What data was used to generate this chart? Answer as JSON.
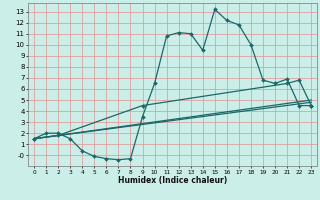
{
  "xlabel": "Humidex (Indice chaleur)",
  "bg_color": "#cceee8",
  "grid_color": "#dda0a0",
  "line_color": "#1a6868",
  "xlim": [
    -0.5,
    23.5
  ],
  "ylim": [
    -1.0,
    13.8
  ],
  "xticks": [
    0,
    1,
    2,
    3,
    4,
    5,
    6,
    7,
    8,
    9,
    10,
    11,
    12,
    13,
    14,
    15,
    16,
    17,
    18,
    19,
    20,
    21,
    22,
    23
  ],
  "yticks": [
    0,
    1,
    2,
    3,
    4,
    5,
    6,
    7,
    8,
    9,
    10,
    11,
    12,
    13
  ],
  "yticklabels": [
    "-0",
    "1",
    "2",
    "3",
    "4",
    "5",
    "6",
    "7",
    "8",
    "9",
    "10",
    "11",
    "12",
    "13"
  ],
  "line1_x": [
    0,
    1,
    2,
    3,
    4,
    5,
    6,
    7,
    8,
    9,
    10,
    11,
    12,
    13,
    14,
    15,
    16,
    17,
    18,
    19,
    20,
    21,
    22,
    23
  ],
  "line1_y": [
    1.5,
    2.0,
    2.0,
    1.5,
    0.4,
    -0.1,
    -0.3,
    -0.4,
    -0.3,
    3.5,
    6.5,
    10.8,
    11.1,
    11.0,
    9.5,
    13.2,
    12.2,
    11.8,
    10.0,
    6.8,
    6.5,
    6.9,
    4.5,
    4.5
  ],
  "line2_x": [
    0,
    2,
    9,
    21,
    22,
    23
  ],
  "line2_y": [
    1.5,
    1.8,
    4.5,
    6.5,
    6.8,
    4.5
  ],
  "line3_x": [
    0,
    2,
    23
  ],
  "line3_y": [
    1.5,
    1.8,
    5.0
  ],
  "line4_x": [
    0,
    23
  ],
  "line4_y": [
    1.5,
    4.8
  ],
  "marker_size": 2.0,
  "line_width": 0.9
}
